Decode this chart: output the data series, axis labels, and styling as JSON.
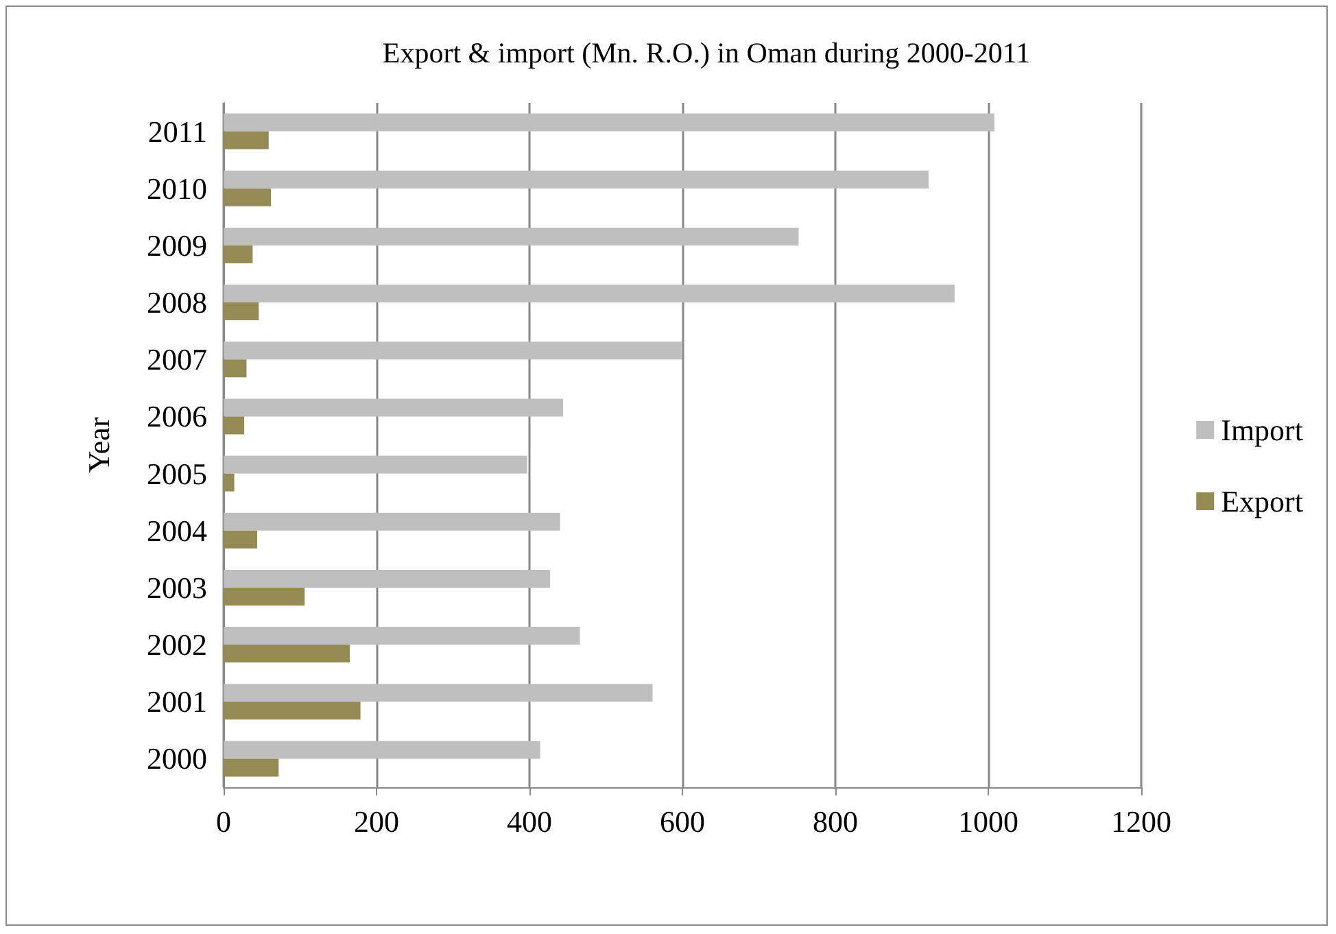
{
  "chart_data": {
    "type": "bar",
    "orientation": "horizontal",
    "title": "Export & import (Mn. R.O.) in Oman during 2000-2011",
    "ylabel": "Year",
    "categories": [
      "2011",
      "2010",
      "2009",
      "2008",
      "2007",
      "2006",
      "2005",
      "2004",
      "2003",
      "2002",
      "2001",
      "2000"
    ],
    "series": [
      {
        "name": "Import",
        "color": "#bfbfbf",
        "values": [
          1008,
          922,
          752,
          956,
          599,
          444,
          397,
          440,
          427,
          466,
          561,
          414
        ]
      },
      {
        "name": "Export",
        "color": "#948a54",
        "values": [
          59,
          62,
          38,
          46,
          30,
          27,
          14,
          44,
          106,
          165,
          179,
          72
        ]
      }
    ],
    "xlim": [
      0,
      1200
    ],
    "xticks": [
      0,
      200,
      400,
      600,
      800,
      1000,
      1200
    ],
    "grid": "x",
    "legend": "right"
  }
}
